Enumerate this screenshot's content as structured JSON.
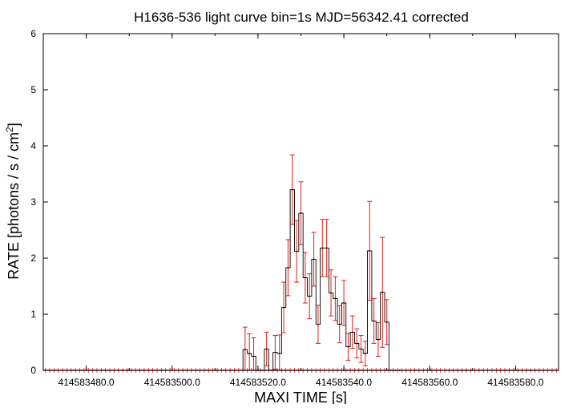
{
  "chart_data": {
    "type": "bar",
    "title": "H1636-536 light curve bin=1s MJD=56342.41 corrected",
    "xlabel": "MAXI TIME [s]",
    "ylabel": "RATE [photons / s / cm",
    "ylabel_superscript": "2",
    "ylabel_suffix": "]",
    "xlim": [
      414583470.0,
      414583590.0
    ],
    "ylim": [
      0,
      6
    ],
    "xticks": [
      414583480.0,
      414583500.0,
      414583520.0,
      414583540.0,
      414583560.0,
      414583580.0
    ],
    "xtick_labels": [
      "414583480.0",
      "414583500.0",
      "414583520.0",
      "414583540.0",
      "414583560.0",
      "414583580.0"
    ],
    "yticks": [
      0,
      1,
      2,
      3,
      4,
      5,
      6
    ],
    "ytick_labels": [
      "0",
      "1",
      "2",
      "3",
      "4",
      "5",
      "6"
    ],
    "grid": false,
    "series": [
      {
        "step_color": "#000000",
        "errorbar_color": "#dd2020",
        "x": [
          414583517,
          414583518,
          414583519,
          414583520,
          414583521,
          414583522,
          414583523,
          414583524,
          414583525,
          414583526,
          414583527,
          414583528,
          414583529,
          414583530,
          414583531,
          414583532,
          414583533,
          414583534,
          414583535,
          414583536,
          414583537,
          414583538,
          414583539,
          414583540,
          414583541,
          414583542,
          414583543,
          414583544,
          414583545,
          414583546,
          414583547,
          414583548,
          414583549,
          414583550,
          414583551,
          414583552,
          414583553
        ],
        "y": [
          0.37,
          0.3,
          0.25,
          0.0,
          0.0,
          0.38,
          0.0,
          0.32,
          0.3,
          1.12,
          1.83,
          3.22,
          2.12,
          2.8,
          1.65,
          1.32,
          1.98,
          0.82,
          2.18,
          2.18,
          1.38,
          1.28,
          0.82,
          1.2,
          0.42,
          0.68,
          0.48,
          0.38,
          0.3,
          2.13,
          0.88,
          0.55,
          1.39,
          0.86,
          0.0,
          0.0,
          0.0
        ],
        "y_err": [
          0.4,
          0.35,
          0.33,
          0.0,
          0.0,
          0.3,
          0.0,
          0.3,
          0.33,
          0.45,
          0.5,
          0.62,
          0.55,
          0.56,
          0.45,
          0.4,
          0.48,
          0.34,
          0.51,
          0.51,
          0.41,
          0.39,
          0.33,
          0.4,
          0.24,
          0.29,
          0.26,
          0.24,
          0.22,
          0.88,
          0.4,
          0.3,
          0.98,
          0.4,
          0.0,
          0.0,
          0.0
        ]
      }
    ]
  }
}
